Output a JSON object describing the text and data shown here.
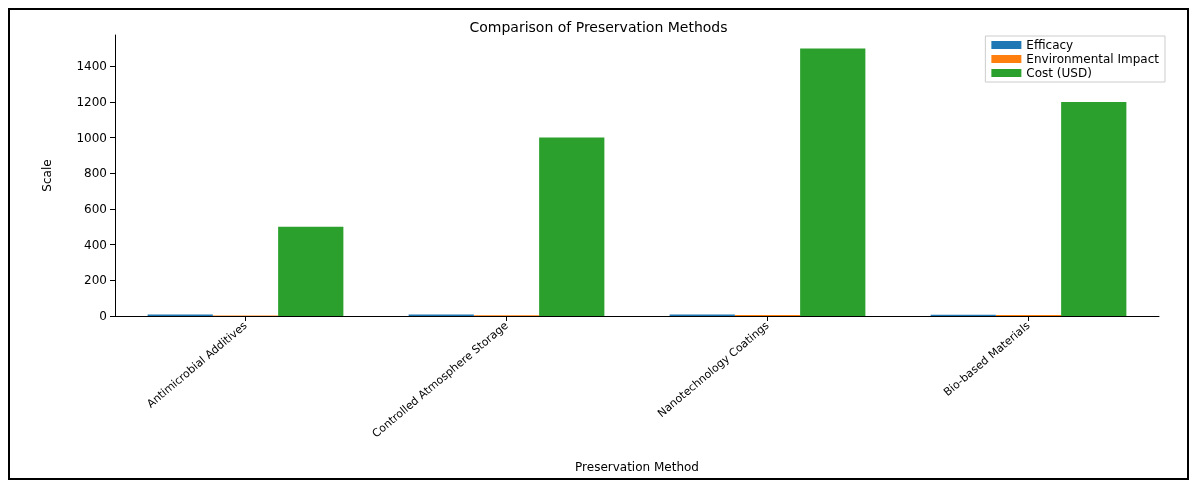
{
  "chart_data": {
    "type": "bar",
    "title": "Comparison of Preservation Methods",
    "xlabel": "Preservation Method",
    "ylabel": "Scale",
    "categories": [
      "Antimicrobial Additives",
      "Controlled Atmosphere Storage",
      "Nanotechnology Coatings",
      "Bio-based Materials"
    ],
    "series": [
      {
        "name": "Efficacy",
        "color": "#1f77b4",
        "values": [
          8,
          9,
          9,
          7
        ]
      },
      {
        "name": "Environmental Impact",
        "color": "#ff7f0e",
        "values": [
          3,
          4,
          5,
          6
        ]
      },
      {
        "name": "Cost (USD)",
        "color": "#2ca02c",
        "values": [
          500,
          1000,
          1500,
          1200
        ]
      }
    ],
    "ylim": [
      0,
      1575
    ],
    "yticks": [
      0,
      200,
      400,
      600,
      800,
      1000,
      1200,
      1400
    ],
    "grid": false,
    "legend": "top right"
  }
}
